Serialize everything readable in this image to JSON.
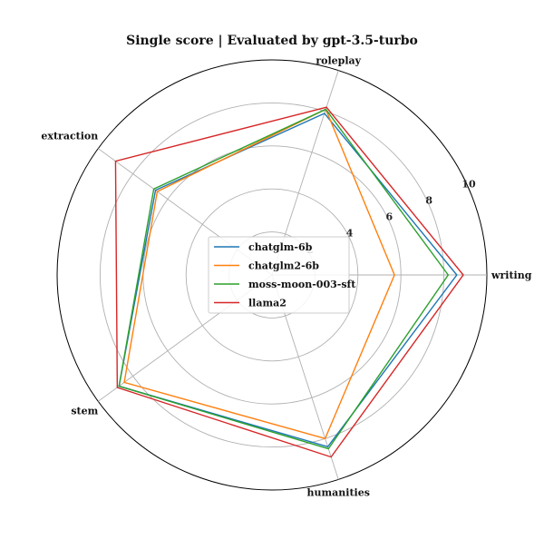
{
  "chart_data": {
    "type": "radar",
    "title": "Single score | Evaluated by gpt-3.5-turbo",
    "categories": [
      "writing",
      "roleplay",
      "extraction",
      "stem",
      "humanities"
    ],
    "rlim": [
      0,
      10
    ],
    "rticks": [
      2,
      4,
      6,
      8,
      10
    ],
    "legend_position": "center",
    "series": [
      {
        "name": "chatglm-6b",
        "color": "#1f77b4",
        "values": [
          8.6,
          7.9,
          6.7,
          8.8,
          8.4
        ]
      },
      {
        "name": "chatglm2-6b",
        "color": "#ff7f0e",
        "values": [
          5.7,
          8.1,
          6.6,
          8.5,
          8.0
        ]
      },
      {
        "name": "moss-moon-003-sft",
        "color": "#2ca02c",
        "values": [
          8.2,
          8.1,
          6.8,
          8.8,
          8.5
        ]
      },
      {
        "name": "llama2",
        "color": "#d62728",
        "values": [
          8.9,
          8.2,
          9.0,
          8.9,
          8.9
        ]
      }
    ]
  }
}
